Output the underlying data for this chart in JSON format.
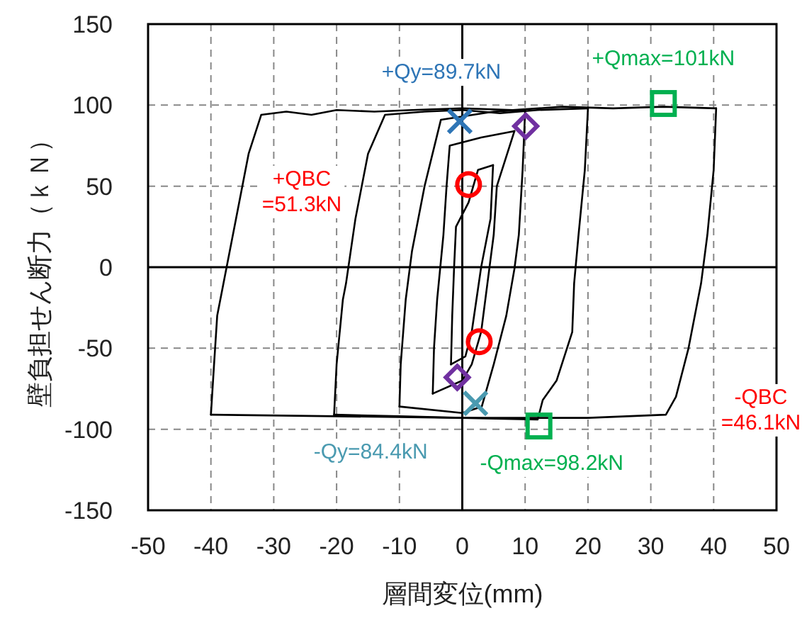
{
  "chart_data": {
    "type": "line",
    "xlabel": "層間変位(mm)",
    "ylabel": "壁負担せん断力（ｋＮ）",
    "xlim": [
      -50,
      50
    ],
    "ylim": [
      -150,
      150
    ],
    "xticks": [
      -50,
      -40,
      -30,
      -20,
      -10,
      0,
      10,
      20,
      30,
      40,
      50
    ],
    "yticks": [
      -150,
      -100,
      -50,
      0,
      50,
      100,
      150
    ],
    "grid": true,
    "line_style": "solid",
    "series": [
      {
        "color": "#000000",
        "x": [
          -40,
          -39.5,
          -39,
          -38,
          -36,
          -34,
          -32,
          -28,
          -24,
          -20,
          -14,
          -8,
          0,
          8,
          16,
          24,
          32,
          40.4
        ],
        "values": [
          -91,
          -60,
          -30,
          -10,
          30,
          70,
          94,
          96,
          94,
          97,
          96,
          97,
          98,
          97,
          99,
          98,
          99,
          98
        ]
      },
      {
        "color": "#000000",
        "x": [
          40.4,
          40,
          39,
          38,
          36,
          34,
          32.4,
          20,
          0,
          -20,
          -40
        ],
        "values": [
          98,
          60,
          20,
          -10,
          -50,
          -80,
          -91,
          -93,
          -93,
          -92,
          -91
        ]
      },
      {
        "color": "#000000",
        "x": [
          -20.4,
          -20,
          -19,
          -18.5,
          -17,
          -15,
          -12.3,
          -6,
          0,
          6,
          12,
          20
        ],
        "values": [
          -91,
          -60,
          -20,
          -10,
          30,
          70,
          94,
          96,
          97,
          95,
          97,
          98
        ]
      },
      {
        "color": "#000000",
        "x": [
          20,
          19.5,
          18.5,
          17.8,
          17.5,
          15,
          12.8,
          12,
          0,
          -10,
          -20.4
        ],
        "values": [
          98,
          60,
          20,
          -10,
          -40,
          -70,
          -82,
          -94,
          -93,
          -92,
          -91
        ]
      },
      {
        "color": "#000000",
        "x": [
          -10,
          -9.8,
          -9,
          -8,
          -6,
          -3.4,
          5,
          10
        ],
        "values": [
          -86,
          -60,
          -20,
          10,
          50,
          91,
          96,
          97
        ]
      },
      {
        "color": "#000000",
        "x": [
          10,
          9.9,
          9.6,
          9,
          8.3,
          7,
          5,
          3.1,
          0,
          -10
        ],
        "values": [
          97,
          87,
          60,
          20,
          -1,
          -30,
          -60,
          -86,
          -90,
          -86
        ]
      },
      {
        "color": "#000000",
        "x": [
          -4.7,
          -4.5,
          -4,
          -3,
          -2.5,
          -2,
          3,
          8.3
        ],
        "values": [
          -78,
          -50,
          -20,
          20,
          50,
          75,
          80,
          84
        ]
      },
      {
        "color": "#000000",
        "x": [
          8.3,
          5.5,
          5,
          4,
          3,
          1.5,
          0,
          -4.7
        ],
        "values": [
          84,
          50,
          20,
          -10,
          -40,
          -60,
          -70,
          -78
        ]
      },
      {
        "color": "#000000",
        "x": [
          -1.8,
          -1.6,
          -1.3,
          -1,
          1,
          2.5,
          4.9
        ],
        "values": [
          -60,
          -30,
          0,
          25,
          40,
          60,
          63
        ]
      },
      {
        "color": "#000000",
        "x": [
          4.9,
          4.5,
          3,
          1.5,
          0.5,
          -1.8
        ],
        "values": [
          63,
          30,
          0,
          -40,
          -55,
          -60
        ]
      },
      {
        "type": "scatter",
        "marker": "cross",
        "colors": [
          "#2e75b6",
          "#4a9ab0"
        ],
        "x": [
          -0.4,
          2.1
        ],
        "values": [
          90,
          -84
        ]
      },
      {
        "type": "scatter",
        "marker": "diamond",
        "colors": [
          "#7030a0",
          "#7030a0"
        ],
        "x": [
          10.1,
          -0.8
        ],
        "values": [
          87,
          -68
        ]
      },
      {
        "type": "scatter",
        "marker": "circle",
        "colors": [
          "#ff0000",
          "#ff0000"
        ],
        "x": [
          1,
          2.7
        ],
        "values": [
          51,
          -46
        ]
      },
      {
        "type": "scatter",
        "marker": "square",
        "colors": [
          "#00b050",
          "#00b050"
        ],
        "x": [
          32,
          12.2
        ],
        "values": [
          101,
          -98
        ]
      }
    ],
    "annotations": [
      {
        "text": "+Qy=89.7kN",
        "x": -0.4,
        "y": 90
      },
      {
        "text": "+Qmax=101kN",
        "x": 32,
        "y": 101
      },
      "+QBC =51.3kN",
      {
        "text": "-Qy=84.4kN",
        "x": 2.1,
        "y": -84
      },
      {
        "text": "-Qmax=98.2kN",
        "x": 12.2,
        "y": -98
      },
      "-QBC =46.1kN"
    ]
  }
}
